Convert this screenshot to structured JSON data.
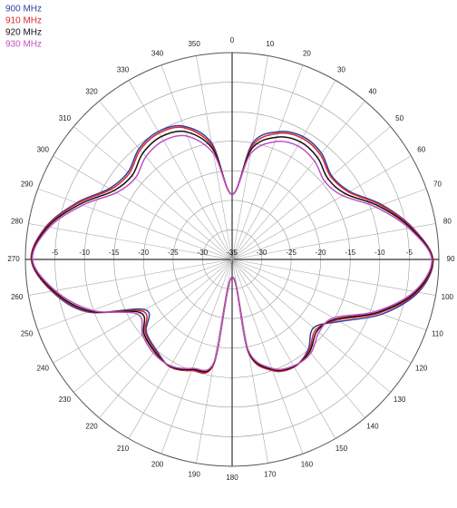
{
  "chart_data": {
    "type": "polar",
    "rlim": [
      -35,
      0
    ],
    "rticks": [
      -5,
      -10,
      -15,
      -20,
      -25,
      -30,
      -35
    ],
    "thetaticks": [
      0,
      10,
      20,
      30,
      40,
      50,
      60,
      70,
      80,
      90,
      100,
      110,
      120,
      130,
      140,
      150,
      160,
      170,
      180,
      190,
      200,
      210,
      220,
      230,
      240,
      250,
      260,
      270,
      280,
      290,
      300,
      310,
      320,
      330,
      340,
      350
    ],
    "grid": true,
    "legend": "upper left",
    "series": [
      {
        "name": "900 MHz",
        "color": "#2f3f9f",
        "values": [
          -24,
          -15,
          -12,
          -11,
          -11.5,
          -13,
          -12,
          -8,
          -4,
          -1,
          -3,
          -8,
          -14,
          -17,
          -15,
          -14,
          -15,
          -19,
          -32,
          -17,
          -15,
          -14,
          -15,
          -16,
          -18,
          -9,
          -4,
          -1,
          -3,
          -7,
          -11,
          -12,
          -10.5,
          -10,
          -11,
          -15
        ]
      },
      {
        "name": "910 MHz",
        "color": "#e3262c",
        "values": [
          -24,
          -15.5,
          -12.3,
          -11.3,
          -11.8,
          -13.2,
          -12.2,
          -8.2,
          -4.1,
          -1,
          -3.2,
          -8.5,
          -14.5,
          -16.5,
          -14.8,
          -14,
          -15,
          -19,
          -32,
          -17,
          -15,
          -14,
          -14.8,
          -15.8,
          -17.5,
          -9.2,
          -4.1,
          -1,
          -3.1,
          -7.2,
          -11.3,
          -12.3,
          -10.8,
          -10.3,
          -11.3,
          -15.5
        ]
      },
      {
        "name": "920 MHz",
        "color": "#111111",
        "values": [
          -24,
          -16,
          -13,
          -12,
          -12.5,
          -13.8,
          -12.8,
          -8.6,
          -4.3,
          -1.1,
          -3.4,
          -8.8,
          -14.8,
          -16.2,
          -14.6,
          -14.1,
          -15.2,
          -19.2,
          -32,
          -17.2,
          -15.2,
          -14.1,
          -14.6,
          -15.5,
          -17,
          -9.4,
          -4.3,
          -1.1,
          -3.3,
          -7.6,
          -11.8,
          -12.9,
          -11.5,
          -11,
          -12,
          -16
        ]
      },
      {
        "name": "930 MHz",
        "color": "#c050c0",
        "values": [
          -24,
          -16.8,
          -13.8,
          -12.8,
          -13.3,
          -14.5,
          -13.4,
          -9.1,
          -4.6,
          -1.2,
          -3.7,
          -9.2,
          -15.2,
          -15.8,
          -14.3,
          -14.2,
          -15.4,
          -19.5,
          -32,
          -17.4,
          -15.4,
          -14.2,
          -14.3,
          -15.2,
          -16.5,
          -9.8,
          -4.6,
          -1.2,
          -3.6,
          -8.1,
          -12.4,
          -13.6,
          -12.3,
          -11.8,
          -12.8,
          -16.8
        ]
      }
    ]
  }
}
